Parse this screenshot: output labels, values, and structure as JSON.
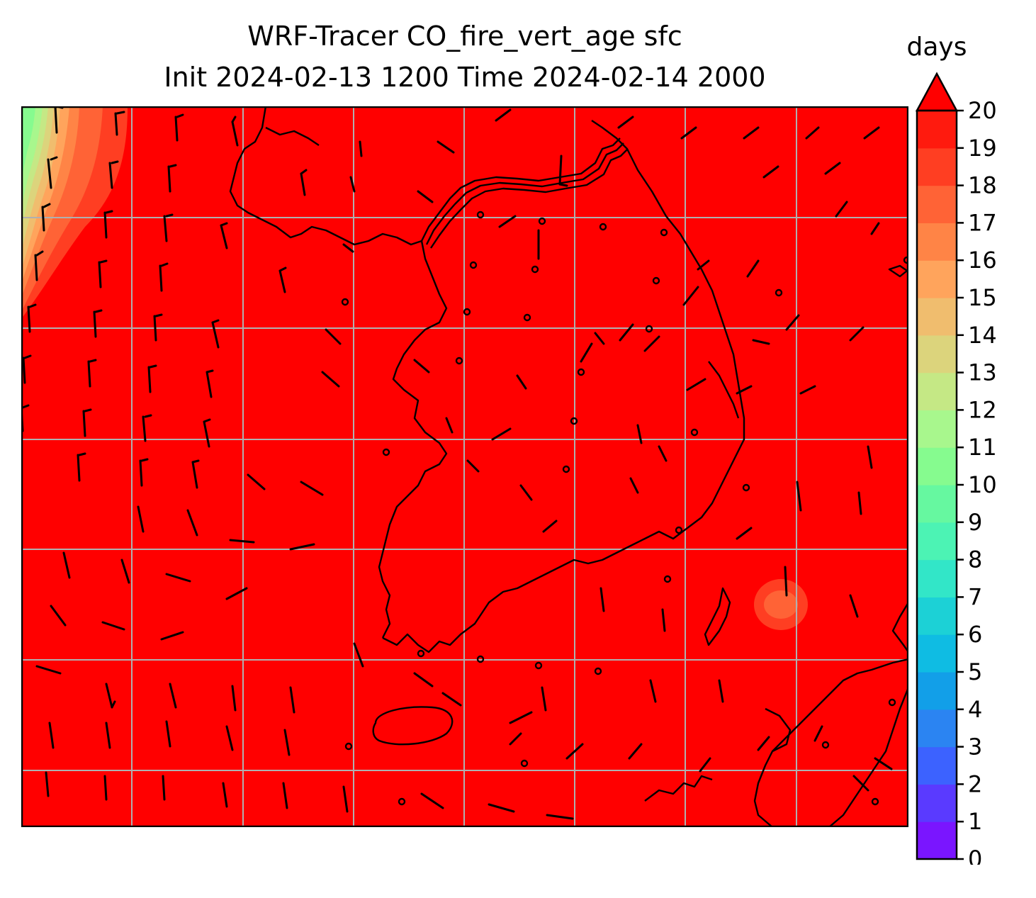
{
  "title": {
    "line1": "WRF-Tracer CO_fire_vert_age sfc",
    "line2": "Init 2024-02-13 1200 Time 2024-02-14 2000"
  },
  "colorbar": {
    "units": "days",
    "ticks": [
      "0",
      "1",
      "2",
      "3",
      "4",
      "5",
      "6",
      "7",
      "8",
      "9",
      "10",
      "11",
      "12",
      "13",
      "14",
      "15",
      "16",
      "17",
      "18",
      "19",
      "20"
    ],
    "extend": "max",
    "colors": [
      "#7a15ff",
      "#5a3aff",
      "#3c62ff",
      "#2b84f2",
      "#129fe8",
      "#0fbce3",
      "#1cd1d6",
      "#32e6c8",
      "#4cf3b4",
      "#66f8a0",
      "#86fb8f",
      "#a8f78d",
      "#c5e885",
      "#dcd47c",
      "#f0bd6e",
      "#ffa45c",
      "#ff8446",
      "#ff6336",
      "#ff3e22",
      "#ff1a0e"
    ],
    "over_color": "#ff0000"
  },
  "map": {
    "field_color": "#ff0000",
    "gridline_color": "#b0b0b0",
    "coastline_color": "#000000",
    "barb_color": "#000000"
  }
}
